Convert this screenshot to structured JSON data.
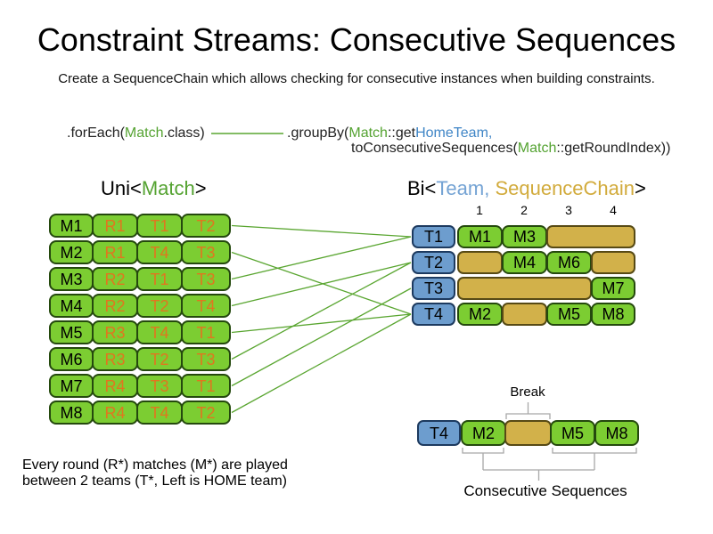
{
  "title": "Constraint Streams: Consecutive Sequences",
  "subtitle": "Create a SequenceChain which allows checking for consecutive instances when building constraints.",
  "code": {
    "foreach_pre": ".forEach(",
    "foreach_class": "Match",
    "foreach_post": ".class)",
    "groupby_pre": ".groupBy(",
    "groupby_class": "Match",
    "groupby_accessor": "::get",
    "groupby_hometeam": "HomeTeam,",
    "groupby2_pre": "toConsecutiveSequences(",
    "groupby2_class": "Match",
    "groupby2_post": "::getRoundIndex))"
  },
  "uni_label": {
    "pre": "Uni<",
    "type": "Match",
    "post": ">"
  },
  "bi_label": {
    "pre": "Bi<",
    "team": "Team,",
    "chain": " SequenceChain",
    "post": ">"
  },
  "matches": [
    {
      "id": "M1",
      "round": "R1",
      "home": "T1",
      "away": "T2"
    },
    {
      "id": "M2",
      "round": "R1",
      "home": "T4",
      "away": "T3"
    },
    {
      "id": "M3",
      "round": "R2",
      "home": "T1",
      "away": "T3"
    },
    {
      "id": "M4",
      "round": "R2",
      "home": "T2",
      "away": "T4"
    },
    {
      "id": "M5",
      "round": "R3",
      "home": "T4",
      "away": "T1"
    },
    {
      "id": "M6",
      "round": "R3",
      "home": "T2",
      "away": "T3"
    },
    {
      "id": "M7",
      "round": "R4",
      "home": "T3",
      "away": "T1"
    },
    {
      "id": "M8",
      "round": "R4",
      "home": "T4",
      "away": "T2"
    }
  ],
  "chart": {
    "columns": [
      "1",
      "2",
      "3",
      "4"
    ],
    "rows": [
      {
        "team": "T1",
        "segments": [
          {
            "type": "match",
            "label": "M1"
          },
          {
            "type": "match",
            "label": "M3"
          },
          {
            "type": "gap"
          }
        ]
      },
      {
        "team": "T2",
        "segments": [
          {
            "type": "gap"
          },
          {
            "type": "match",
            "label": "M4"
          },
          {
            "type": "match",
            "label": "M6"
          },
          {
            "type": "gap"
          }
        ]
      },
      {
        "team": "T3",
        "segments": [
          {
            "type": "gap"
          },
          {
            "type": "match",
            "label": "M7"
          }
        ]
      },
      {
        "team": "T4",
        "segments": [
          {
            "type": "match",
            "label": "M2"
          },
          {
            "type": "gap"
          },
          {
            "type": "match",
            "label": "M5"
          },
          {
            "type": "match",
            "label": "M8"
          }
        ]
      }
    ]
  },
  "connections": [
    {
      "match": "M1",
      "team": "T1"
    },
    {
      "match": "M2",
      "team": "T4"
    },
    {
      "match": "M3",
      "team": "T1"
    },
    {
      "match": "M4",
      "team": "T2"
    },
    {
      "match": "M5",
      "team": "T4"
    },
    {
      "match": "M6",
      "team": "T2"
    },
    {
      "match": "M7",
      "team": "T3"
    },
    {
      "match": "M8",
      "team": "T4"
    }
  ],
  "detail": {
    "team": "T4",
    "cells": [
      "M2",
      "M5",
      "M8"
    ],
    "break_label": "Break",
    "sequences_label": "Consecutive Sequences"
  },
  "footnote": {
    "line1": "Every round (R*) matches (M*) are played",
    "line2": "between 2 teams (T*, Left is HOME team)"
  },
  "colors": {
    "match_green": "#7ccd32",
    "team_blue": "#6d9dce",
    "chain_tan": "#d2b14a",
    "orange_text": "#e0761f",
    "green_text": "#55a332",
    "blue_text": "#3f85c6",
    "gold_text": "#d2ab3c",
    "line_green": "#5aa631",
    "bracket_gray": "#a8a8a8"
  }
}
